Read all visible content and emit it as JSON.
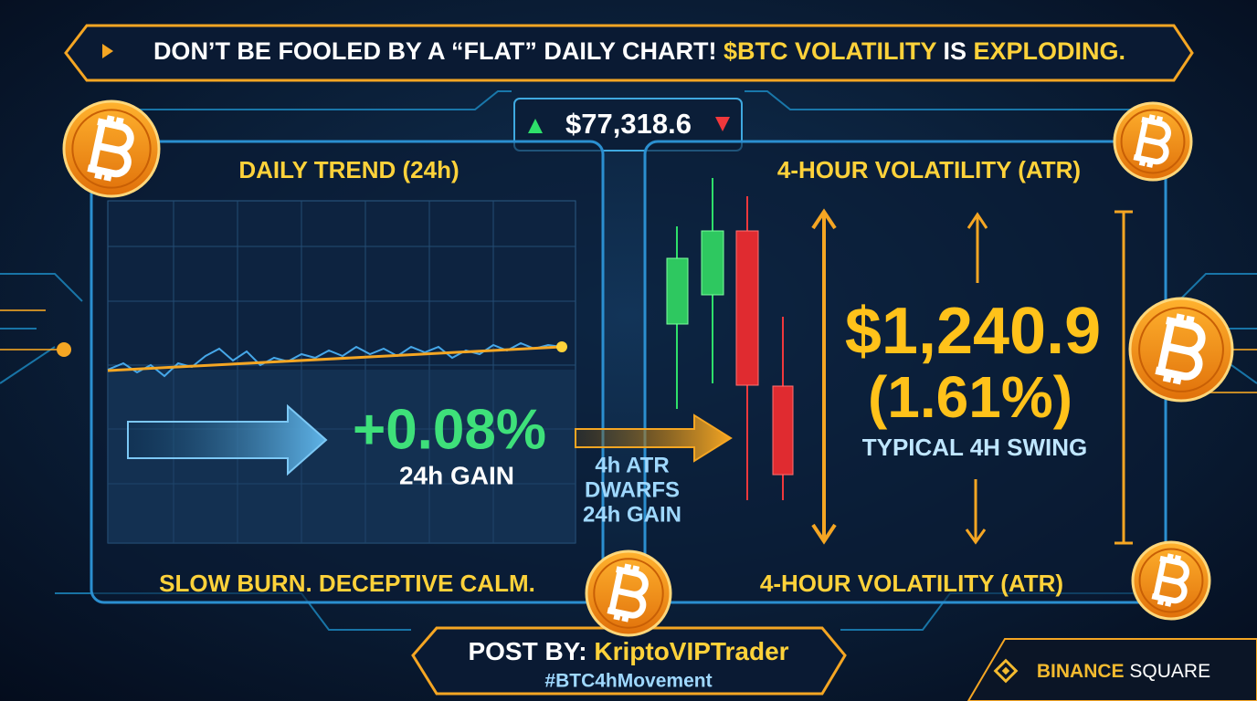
{
  "header": {
    "part1": "DON’T BE FOOLED BY A “FLAT” DAILY CHART!",
    "part2": "$BTC VOLATILITY",
    "part3": "IS",
    "part4": "EXPLODING."
  },
  "price": "$77,318.6",
  "left_panel": {
    "title": "DAILY TREND (24h)",
    "value": "+0.08%",
    "value_label": "24h GAIN",
    "footer": "SLOW BURN. DECEPTIVE CALM."
  },
  "middle": {
    "line1": "4h ATR",
    "line2": "DWARFS",
    "line3": "24h GAIN"
  },
  "right_panel": {
    "title": "4-HOUR VOLATILITY (ATR)",
    "value": "$1,240.9",
    "percent": "(1.61%)",
    "caption": "TYPICAL 4H SWING",
    "footer": "4-HOUR VOLATILITY (ATR)"
  },
  "footer": {
    "post_by": "POST BY:",
    "author": "KriptoVIPTrader",
    "hashtag": "#BTC4hMovement"
  },
  "brand": {
    "part1": "BINANCE",
    "part2": "SQUARE"
  }
}
